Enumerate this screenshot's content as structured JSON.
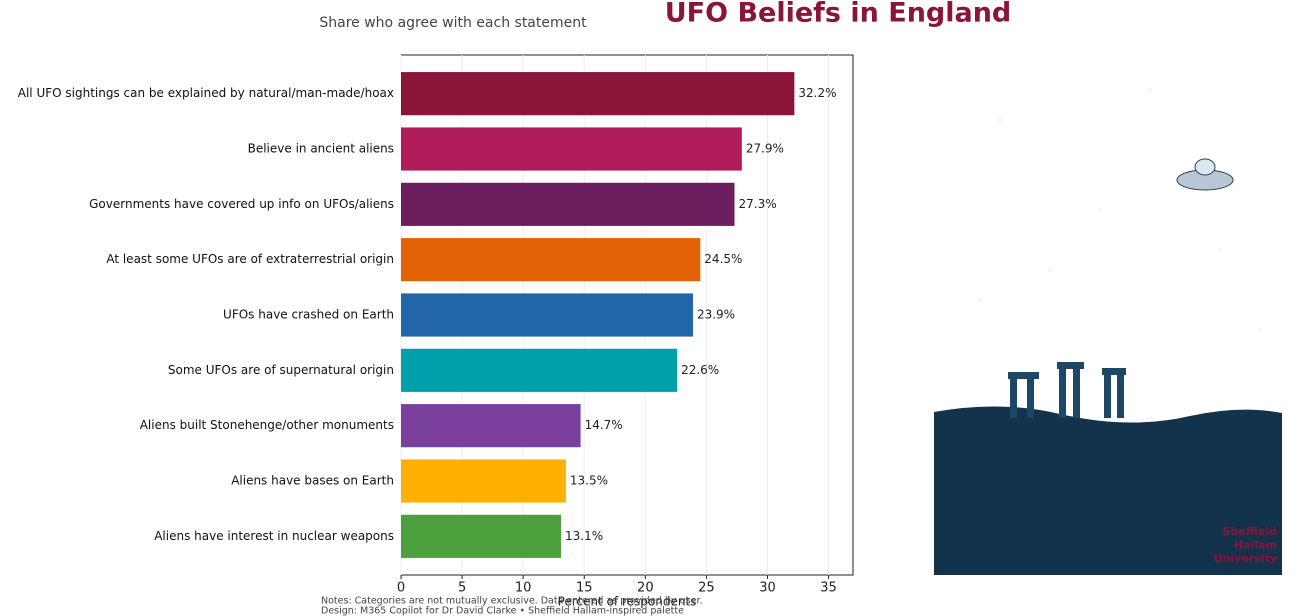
{
  "chart_data": {
    "type": "barh",
    "title": "UFO Beliefs in England",
    "subtitle": "Share who agree with each statement",
    "x_label": "Percent of respondents",
    "categories": [
      "All UFO sightings can be explained by natural/man-made/hoax",
      "Believe in ancient aliens",
      "Governments have covered up info on UFOs/aliens",
      "At least some UFOs are of extraterrestrial origin",
      "UFOs have crashed on Earth",
      "Some UFOs are of supernatural origin",
      "Aliens built Stonehenge/other monuments",
      "Aliens have bases on Earth",
      "Aliens have interest in nuclear weapons"
    ],
    "values": [
      32.2,
      27.9,
      27.3,
      24.5,
      23.9,
      22.6,
      14.7,
      13.5,
      13.1
    ],
    "value_labels": [
      "32.2%",
      "27.9%",
      "27.3%",
      "24.5%",
      "23.9%",
      "22.6%",
      "14.7%",
      "13.5%",
      "13.1%"
    ],
    "colors": [
      "#8b1538",
      "#b01c5a",
      "#6b1f5e",
      "#e36205",
      "#2166a8",
      "#00a0aa",
      "#7b3f9e",
      "#ffb000",
      "#4e9f3d"
    ],
    "xlim": [
      0,
      37
    ],
    "xticks": [
      0,
      5,
      10,
      15,
      20,
      25,
      30,
      35
    ],
    "grid": true,
    "notes": [
      "Notes: Categories are not mutually exclusive. Data entered as provided by user.",
      "Design: M365 Copilot for Dr David Clarke • Sheffield Hallam-inspired palette"
    ],
    "logo": [
      "Sheffield",
      "Hallam",
      "University"
    ]
  }
}
